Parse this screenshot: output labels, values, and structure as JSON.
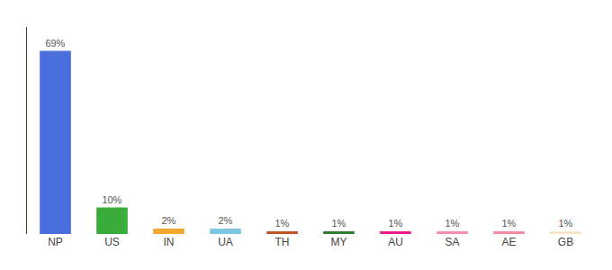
{
  "chart_data": {
    "type": "bar",
    "categories": [
      "NP",
      "US",
      "IN",
      "UA",
      "TH",
      "MY",
      "AU",
      "SA",
      "AE",
      "GB"
    ],
    "values": [
      69,
      10,
      2,
      2,
      1,
      1,
      1,
      1,
      1,
      1
    ],
    "value_labels": [
      "69%",
      "10%",
      "2%",
      "2%",
      "1%",
      "1%",
      "1%",
      "1%",
      "1%",
      "1%"
    ],
    "data_labels": true,
    "colors": [
      "#4a6fdc",
      "#3aac3a",
      "#f0a830",
      "#7ec8e3",
      "#c0532a",
      "#2e7d32",
      "#e91e8c",
      "#f48fb1",
      "#f48ca0",
      "#f5e6c8"
    ],
    "ylim": [
      0,
      78
    ],
    "grid": false,
    "tick_labels": "x"
  }
}
